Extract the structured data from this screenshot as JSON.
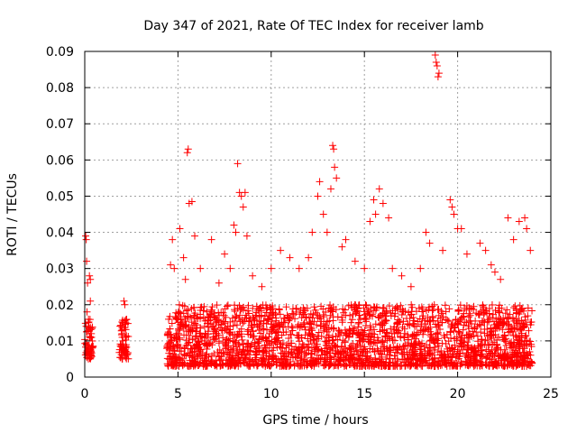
{
  "chart_data": {
    "type": "scatter",
    "title": "Day 347 of 2021, Rate Of TEC Index for receiver lamb",
    "xlabel": "GPS time / hours",
    "ylabel": "ROTI / TECUs",
    "xlim": [
      0,
      25
    ],
    "ylim": [
      0,
      0.09
    ],
    "x_ticks": [
      "0",
      "5",
      "10",
      "15",
      "20",
      "25"
    ],
    "y_ticks": [
      "0",
      "0.01",
      "0.02",
      "0.03",
      "0.04",
      "0.05",
      "0.06",
      "0.07",
      "0.08",
      "0.09"
    ],
    "grid": true,
    "marker": "+",
    "color": "#ff0000",
    "series": [
      {
        "name": "",
        "points": [
          [
            0.05,
            0.039
          ],
          [
            0.08,
            0.038
          ],
          [
            0.1,
            0.032
          ],
          [
            0.15,
            0.026
          ],
          [
            0.12,
            0.018
          ],
          [
            0.2,
            0.016
          ],
          [
            0.1,
            0.009
          ],
          [
            0.2,
            0.007
          ],
          [
            0.3,
            0.006
          ],
          [
            0.25,
            0.028
          ],
          [
            0.3,
            0.027
          ],
          [
            0.3,
            0.021
          ],
          [
            0.35,
            0.012
          ],
          [
            0.4,
            0.008
          ],
          [
            2.1,
            0.021
          ],
          [
            2.15,
            0.02
          ],
          [
            2.2,
            0.015
          ],
          [
            2.0,
            0.012
          ],
          [
            2.1,
            0.008
          ],
          [
            2.25,
            0.006
          ],
          [
            2.05,
            0.01
          ],
          [
            4.5,
            0.016
          ],
          [
            4.6,
            0.031
          ],
          [
            4.7,
            0.038
          ],
          [
            4.8,
            0.03
          ],
          [
            5.1,
            0.041
          ],
          [
            5.3,
            0.033
          ],
          [
            5.4,
            0.027
          ],
          [
            5.5,
            0.062
          ],
          [
            5.55,
            0.063
          ],
          [
            5.6,
            0.048
          ],
          [
            5.75,
            0.0485
          ],
          [
            5.9,
            0.039
          ],
          [
            6.2,
            0.03
          ],
          [
            6.8,
            0.038
          ],
          [
            7.2,
            0.026
          ],
          [
            7.5,
            0.034
          ],
          [
            7.8,
            0.03
          ],
          [
            8.0,
            0.042
          ],
          [
            8.1,
            0.04
          ],
          [
            8.2,
            0.059
          ],
          [
            8.3,
            0.051
          ],
          [
            8.4,
            0.05
          ],
          [
            8.5,
            0.047
          ],
          [
            8.6,
            0.051
          ],
          [
            8.7,
            0.039
          ],
          [
            9.0,
            0.028
          ],
          [
            9.5,
            0.025
          ],
          [
            10.0,
            0.03
          ],
          [
            10.5,
            0.035
          ],
          [
            11.0,
            0.033
          ],
          [
            11.5,
            0.03
          ],
          [
            12.0,
            0.033
          ],
          [
            12.2,
            0.04
          ],
          [
            12.5,
            0.05
          ],
          [
            12.6,
            0.054
          ],
          [
            12.8,
            0.045
          ],
          [
            13.0,
            0.04
          ],
          [
            13.2,
            0.052
          ],
          [
            13.3,
            0.064
          ],
          [
            13.35,
            0.063
          ],
          [
            13.4,
            0.058
          ],
          [
            13.5,
            0.055
          ],
          [
            13.8,
            0.036
          ],
          [
            14.0,
            0.038
          ],
          [
            14.5,
            0.032
          ],
          [
            15.0,
            0.03
          ],
          [
            15.3,
            0.043
          ],
          [
            15.5,
            0.049
          ],
          [
            15.6,
            0.045
          ],
          [
            15.8,
            0.052
          ],
          [
            16.0,
            0.048
          ],
          [
            16.3,
            0.044
          ],
          [
            16.5,
            0.03
          ],
          [
            17.0,
            0.028
          ],
          [
            17.5,
            0.025
          ],
          [
            18.0,
            0.03
          ],
          [
            18.3,
            0.04
          ],
          [
            18.5,
            0.037
          ],
          [
            18.8,
            0.089
          ],
          [
            18.85,
            0.087
          ],
          [
            18.9,
            0.086
          ],
          [
            18.95,
            0.083
          ],
          [
            19.0,
            0.084
          ],
          [
            19.2,
            0.035
          ],
          [
            19.6,
            0.049
          ],
          [
            19.7,
            0.047
          ],
          [
            19.8,
            0.045
          ],
          [
            20.0,
            0.041
          ],
          [
            20.2,
            0.041
          ],
          [
            20.5,
            0.034
          ],
          [
            21.2,
            0.037
          ],
          [
            21.5,
            0.035
          ],
          [
            21.8,
            0.031
          ],
          [
            22.0,
            0.029
          ],
          [
            22.3,
            0.027
          ],
          [
            22.7,
            0.044
          ],
          [
            23.0,
            0.038
          ],
          [
            23.3,
            0.043
          ],
          [
            23.6,
            0.044
          ],
          [
            23.7,
            0.041
          ],
          [
            23.9,
            0.035
          ]
        ]
      }
    ],
    "dense_band": {
      "description_free_values": true,
      "segments": [
        {
          "x": [
            0.0,
            0.45
          ],
          "y": [
            0.005,
            0.016
          ]
        },
        {
          "x": [
            1.85,
            2.35
          ],
          "y": [
            0.005,
            0.016
          ]
        },
        {
          "x": [
            4.4,
            24.0
          ],
          "y": [
            0.003,
            0.02
          ]
        }
      ]
    }
  }
}
